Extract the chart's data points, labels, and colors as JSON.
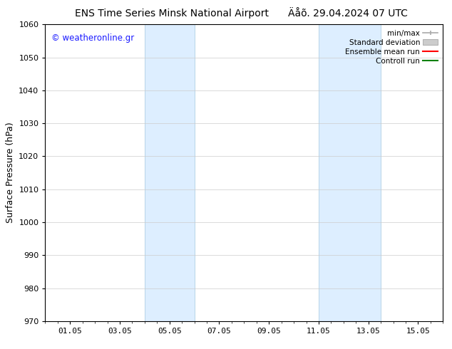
{
  "title_left": "ENS Time Series Minsk National Airport",
  "title_right": "Äåõ. 29.04.2024 07 UTC",
  "ylabel": "Surface Pressure (hPa)",
  "ylim": [
    970,
    1060
  ],
  "yticks": [
    970,
    980,
    990,
    1000,
    1010,
    1020,
    1030,
    1040,
    1050,
    1060
  ],
  "xlim": [
    0,
    16
  ],
  "xtick_labels": [
    "01.05",
    "03.05",
    "05.05",
    "07.05",
    "09.05",
    "11.05",
    "13.05",
    "15.05"
  ],
  "xtick_positions": [
    1,
    3,
    5,
    7,
    9,
    11,
    13,
    15
  ],
  "shaded_bands": [
    {
      "x_start": 4.0,
      "x_end": 6.0
    },
    {
      "x_start": 11.0,
      "x_end": 13.5
    }
  ],
  "shaded_color": "#ddeeff",
  "shaded_edge_color": "#b8d4e8",
  "background_color": "#ffffff",
  "grid_color": "#cccccc",
  "watermark_text": "© weatheronline.gr",
  "watermark_color": "#1a1aff",
  "legend_items": [
    {
      "label": "min/max",
      "color": "#aaaaaa",
      "style": "minmax"
    },
    {
      "label": "Standard deviation",
      "color": "#cccccc",
      "style": "stddev"
    },
    {
      "label": "Ensemble mean run",
      "color": "#ff0000",
      "style": "line"
    },
    {
      "label": "Controll run",
      "color": "#008000",
      "style": "line"
    }
  ],
  "font_size_title": 10,
  "font_size_axis": 9,
  "font_size_tick": 8,
  "font_size_legend": 7.5,
  "font_size_watermark": 8.5
}
